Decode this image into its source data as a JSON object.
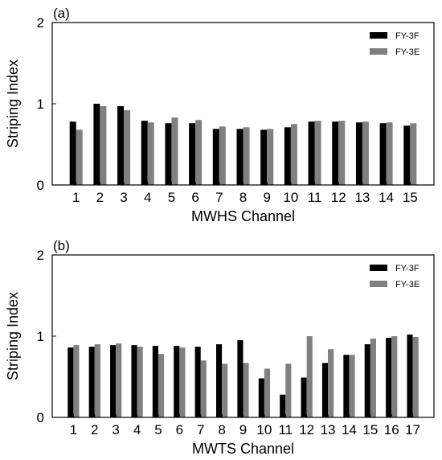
{
  "colors": {
    "FY-3F": "#000000",
    "FY-3E": "#808080"
  },
  "chart_data": [
    {
      "type": "bar",
      "panel_label": "(a)",
      "xlabel": "MWHS Channel",
      "ylabel": "Striping Index",
      "ylim": [
        0,
        2
      ],
      "yticks": [
        0,
        1,
        2
      ],
      "grid": false,
      "legend_position": "top-right",
      "categories": [
        "1",
        "2",
        "3",
        "4",
        "5",
        "6",
        "7",
        "8",
        "9",
        "10",
        "11",
        "12",
        "13",
        "14",
        "15"
      ],
      "series": [
        {
          "name": "FY-3F",
          "values": [
            0.78,
            1.0,
            0.97,
            0.79,
            0.76,
            0.76,
            0.69,
            0.69,
            0.68,
            0.71,
            0.78,
            0.78,
            0.77,
            0.76,
            0.73
          ]
        },
        {
          "name": "FY-3E",
          "values": [
            0.68,
            0.97,
            0.92,
            0.77,
            0.83,
            0.8,
            0.72,
            0.71,
            0.69,
            0.75,
            0.79,
            0.79,
            0.78,
            0.77,
            0.76
          ]
        }
      ]
    },
    {
      "type": "bar",
      "panel_label": "(b)",
      "xlabel": "MWTS Channel",
      "ylabel": "Striping Index",
      "ylim": [
        0,
        2
      ],
      "yticks": [
        0,
        1,
        2
      ],
      "grid": false,
      "legend_position": "top-right",
      "categories": [
        "1",
        "2",
        "3",
        "4",
        "5",
        "6",
        "7",
        "8",
        "9",
        "10",
        "11",
        "12",
        "13",
        "14",
        "15",
        "16",
        "17"
      ],
      "series": [
        {
          "name": "FY-3F",
          "values": [
            0.86,
            0.87,
            0.89,
            0.89,
            0.88,
            0.88,
            0.87,
            0.9,
            0.95,
            0.48,
            0.28,
            0.49,
            0.67,
            0.77,
            0.9,
            0.98,
            1.02
          ]
        },
        {
          "name": "FY-3E",
          "values": [
            0.89,
            0.9,
            0.91,
            0.87,
            0.78,
            0.86,
            0.7,
            0.66,
            0.67,
            0.6,
            0.66,
            1.0,
            0.84,
            0.77,
            0.97,
            1.0,
            0.99
          ]
        }
      ]
    }
  ]
}
